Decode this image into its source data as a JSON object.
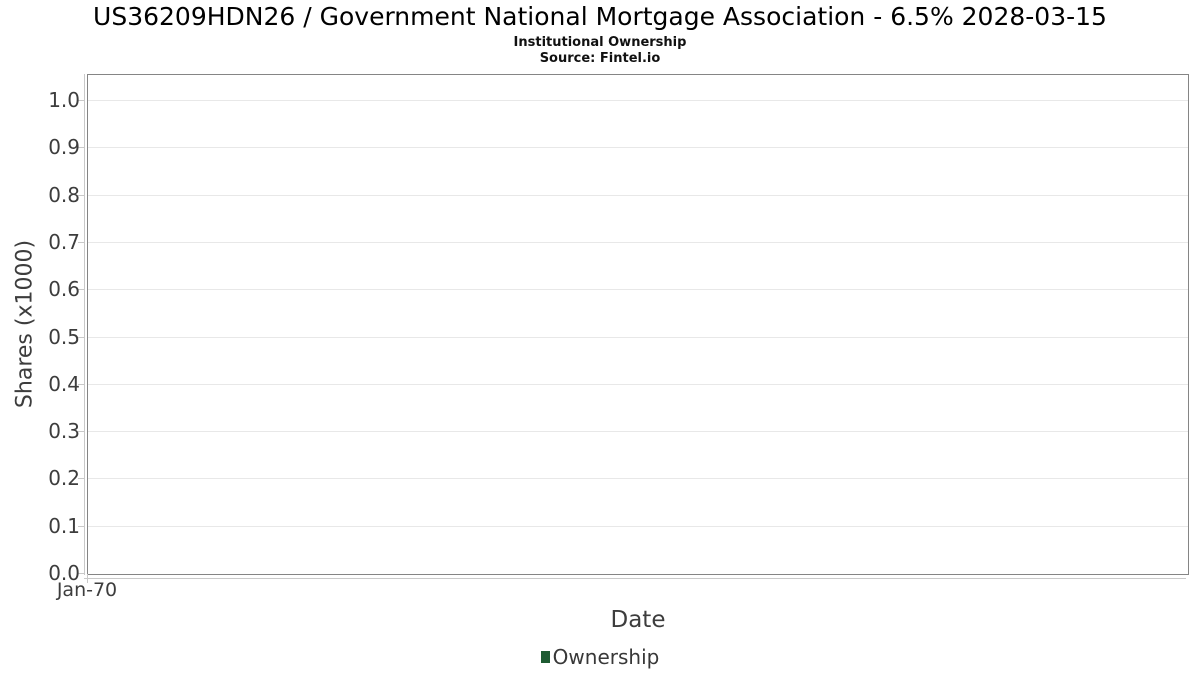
{
  "header": {
    "title": "US36209HDN26 / Government National Mortgage Association - 6.5% 2028-03-15",
    "subtitle": "Institutional Ownership",
    "source": "Source: Fintel.io"
  },
  "chart_data": {
    "type": "bar",
    "title": "US36209HDN26 / Government National Mortgage Association - 6.5% 2028-03-15",
    "subtitle": "Institutional Ownership",
    "source_note": "Source: Fintel.io",
    "xlabel": "Date",
    "ylabel": "Shares (x1000)",
    "x_tick_labels": [
      "Jan-70"
    ],
    "y_tick_labels": [
      "0.0",
      "0.1",
      "0.2",
      "0.3",
      "0.4",
      "0.5",
      "0.6",
      "0.7",
      "0.8",
      "0.9",
      "1.0"
    ],
    "y_tick_values": [
      0,
      0.1,
      0.2,
      0.3,
      0.4,
      0.5,
      0.6,
      0.7,
      0.8,
      0.9,
      1.0
    ],
    "ylim": [
      0,
      1.053
    ],
    "grid": true,
    "legend_position": "bottom",
    "series": [
      {
        "name": "Ownership",
        "type": "bar",
        "color": "#1e5b32",
        "x": [],
        "values": []
      }
    ],
    "colors": {
      "series_ownership": "#1e5b32",
      "plot_border": "#858585",
      "gridline": "#e8e8e8",
      "axis_line": "#c9c9c9",
      "axis_text": "#3d3d3d",
      "title_text": "#000000"
    }
  }
}
